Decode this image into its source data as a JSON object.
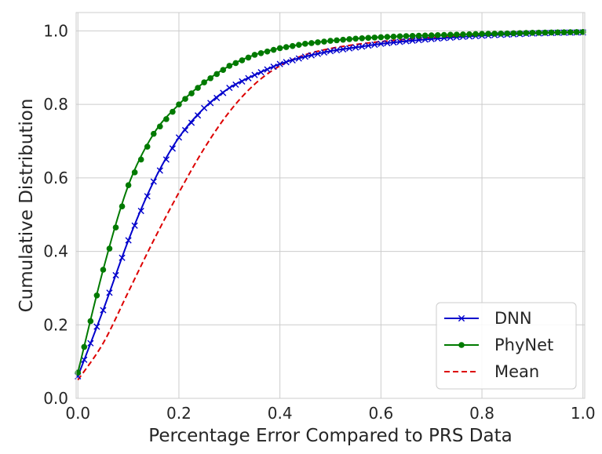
{
  "chart_data": {
    "type": "line",
    "title": "",
    "xlabel": "Percentage Error Compared to PRS Data",
    "ylabel": "Cumulative Distribution",
    "xlim": [
      0.0,
      1.0
    ],
    "ylim": [
      0.0,
      1.0
    ],
    "xticks": [
      "0.0",
      "0.2",
      "0.4",
      "0.6",
      "0.8",
      "1.0"
    ],
    "yticks": [
      "0.0",
      "0.2",
      "0.4",
      "0.6",
      "0.8",
      "1.0"
    ],
    "grid": true,
    "legend_position": "lower-right",
    "x": [
      0.0,
      0.05,
      0.1,
      0.15,
      0.2,
      0.25,
      0.3,
      0.35,
      0.4,
      0.45,
      0.5,
      0.55,
      0.6,
      0.65,
      0.7,
      0.75,
      0.8,
      0.85,
      0.9,
      0.95,
      1.0
    ],
    "series": [
      {
        "name": "DNN",
        "color": "#0000cc",
        "style": "solid",
        "marker": "x",
        "values": [
          0.06,
          0.24,
          0.43,
          0.59,
          0.71,
          0.79,
          0.845,
          0.88,
          0.91,
          0.93,
          0.945,
          0.955,
          0.965,
          0.972,
          0.978,
          0.983,
          0.987,
          0.99,
          0.993,
          0.995,
          0.996
        ]
      },
      {
        "name": "PhyNet",
        "color": "#007a00",
        "style": "solid",
        "marker": "circle",
        "values": [
          0.07,
          0.35,
          0.58,
          0.72,
          0.8,
          0.86,
          0.905,
          0.935,
          0.953,
          0.965,
          0.973,
          0.979,
          0.983,
          0.986,
          0.988,
          0.99,
          0.992,
          0.993,
          0.995,
          0.996,
          0.997
        ]
      },
      {
        "name": "Mean",
        "color": "#dd0000",
        "style": "dashed",
        "marker": "none",
        "values": [
          0.05,
          0.15,
          0.29,
          0.43,
          0.56,
          0.68,
          0.78,
          0.855,
          0.905,
          0.935,
          0.952,
          0.963,
          0.971,
          0.977,
          0.982,
          0.986,
          0.989,
          0.992,
          0.994,
          0.996,
          0.998
        ]
      }
    ]
  }
}
